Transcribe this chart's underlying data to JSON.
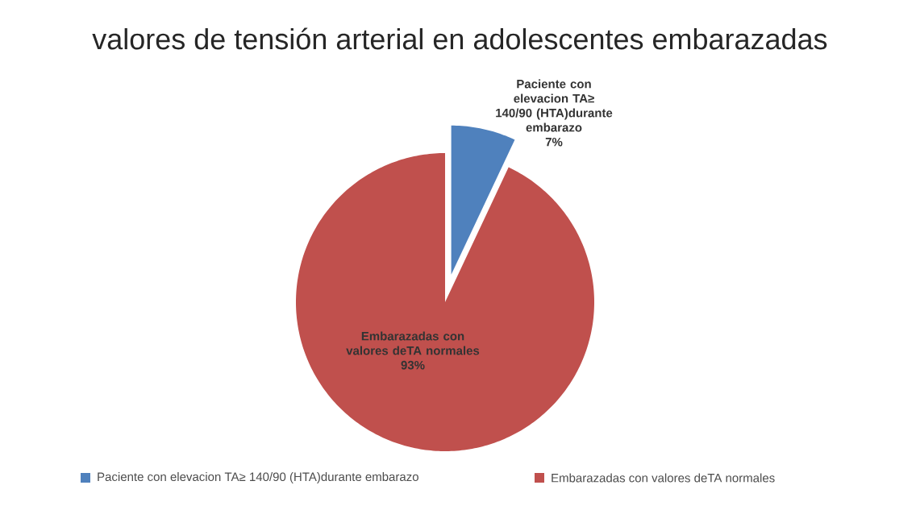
{
  "chart_data": {
    "type": "pie",
    "title": "valores de tensión arterial en adolescentes embarazadas",
    "categories": [
      "Paciente con elevacion TA≥ 140/90 (HTA)durante embarazo",
      "Embarazadas con valores deTA normales"
    ],
    "values": [
      7,
      93
    ],
    "colors": [
      "#4f81bd",
      "#c0504d"
    ],
    "value_labels": [
      "7%",
      "93%"
    ],
    "legend": "bottom"
  }
}
